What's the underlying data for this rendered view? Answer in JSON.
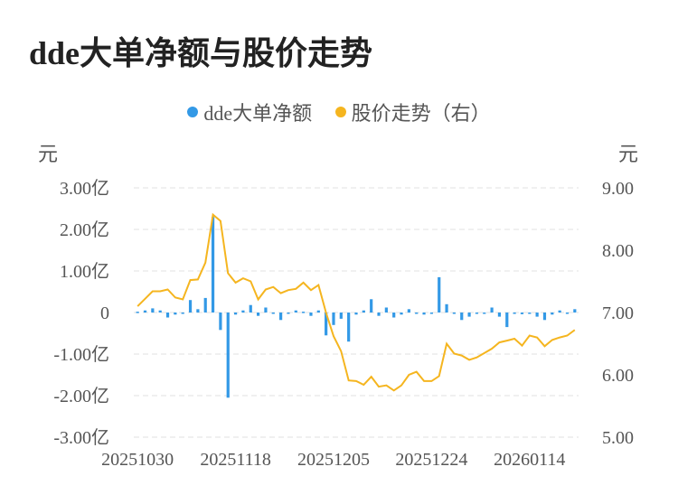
{
  "title": "dde大单净额与股价走势",
  "colors": {
    "bar": "#3399e6",
    "line": "#f5b51f",
    "grid": "#e6e6e6"
  },
  "chart_data": {
    "type": "bar+line",
    "title": "dde大单净额与股价走势",
    "legend": {
      "placement": "top-center",
      "entries": [
        "dde大单净额",
        "股价走势（右）"
      ]
    },
    "left_axis": {
      "unit": "元",
      "ticks": [
        "3.00亿",
        "2.00亿",
        "1.00亿",
        "0",
        "-1.00亿",
        "-2.00亿",
        "-3.00亿"
      ],
      "range": [
        -3,
        3
      ]
    },
    "right_axis": {
      "unit": "元",
      "ticks": [
        "9.00",
        "8.00",
        "7.00",
        "6.00",
        "5.00"
      ],
      "range": [
        5,
        9
      ]
    },
    "x_ticks": [
      {
        "index": 0,
        "label": "20251030"
      },
      {
        "index": 13,
        "label": "20251118"
      },
      {
        "index": 26,
        "label": "20251205"
      },
      {
        "index": 39,
        "label": "20251224"
      },
      {
        "index": 52,
        "label": "20260114"
      }
    ],
    "grid": true,
    "series": [
      {
        "name": "dde大单净额",
        "type": "bar",
        "axis": "left",
        "values": [
          0.02,
          0.05,
          0.1,
          0.05,
          -0.12,
          -0.05,
          -0.02,
          0.3,
          0.08,
          0.35,
          2.3,
          -0.42,
          -2.05,
          -0.05,
          0.05,
          0.18,
          -0.08,
          0.12,
          0,
          -0.18,
          0,
          0.05,
          0.02,
          -0.08,
          0.05,
          -0.55,
          -0.3,
          -0.15,
          -0.7,
          -0.05,
          0.05,
          0.32,
          -0.08,
          0.12,
          -0.12,
          -0.05,
          0.08,
          0,
          -0.05,
          0,
          0.85,
          0.2,
          0,
          -0.18,
          -0.1,
          -0.02,
          0,
          0.12,
          -0.1,
          -0.35,
          -0.02,
          -0.04,
          0,
          -0.1,
          -0.18,
          -0.05,
          0.05,
          -0.02,
          0.08
        ]
      },
      {
        "name": "股价走势（右）",
        "type": "line",
        "axis": "right",
        "values": [
          7.1,
          7.22,
          7.34,
          7.34,
          7.37,
          7.24,
          7.21,
          7.52,
          7.53,
          7.8,
          8.57,
          8.47,
          7.63,
          7.48,
          7.55,
          7.5,
          7.21,
          7.37,
          7.41,
          7.31,
          7.36,
          7.38,
          7.48,
          7.36,
          7.44,
          7.0,
          6.62,
          6.38,
          5.91,
          5.9,
          5.84,
          5.97,
          5.81,
          5.83,
          5.75,
          5.83,
          6.0,
          6.05,
          5.9,
          5.9,
          5.98,
          6.5,
          6.34,
          6.31,
          6.24,
          6.28,
          6.35,
          6.42,
          6.52,
          6.55,
          6.58,
          6.47,
          6.63,
          6.6,
          6.46,
          6.56,
          6.6,
          6.63,
          6.72
        ]
      }
    ]
  }
}
